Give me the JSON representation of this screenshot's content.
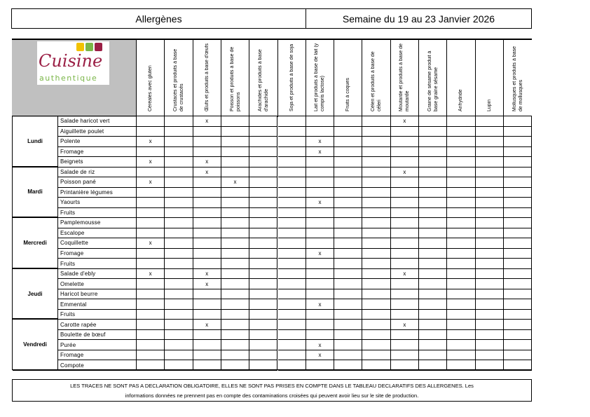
{
  "header": {
    "title": "Allergènes",
    "week": "Semaine du 19 au 23 Janvier 2026"
  },
  "logo": {
    "line1": "Cuisine",
    "line2": "authentique",
    "colors": {
      "red": "#9b1f45",
      "green": "#7ab648",
      "yellow": "#f2c200"
    }
  },
  "columns": [
    "Céréales avec gluten",
    "Crustacés et produits à base de crustacés",
    "Œufs et produits à base d'œufs",
    "Poisson et produits à base de poissons",
    "Arachides et produits à base d'arachide",
    "Soja et produits à base de soja",
    "Lait et produits à base de lait (y compris lactose)",
    "Fruits à coques",
    "Céleri et produits à base de céleri",
    "Moutarde et produits à base de moutarde",
    "Graine de sésame produit à base graine sésame",
    "Anhydride",
    "Lupin",
    "Mollusques et produits à base de mollusques"
  ],
  "days": [
    {
      "name": "Lundi",
      "dishes": [
        {
          "name": "Salade haricot vert",
          "marks": [
            2,
            9
          ]
        },
        {
          "name": "Aiguillette poulet",
          "marks": []
        },
        {
          "name": "Polente",
          "marks": [
            0,
            6
          ]
        },
        {
          "name": "Fromage",
          "marks": [
            6
          ]
        },
        {
          "name": "Beignets",
          "marks": [
            0,
            2
          ]
        }
      ]
    },
    {
      "name": "Mardi",
      "dishes": [
        {
          "name": "Salade de riz",
          "marks": [
            2,
            9
          ]
        },
        {
          "name": "Poisson pané",
          "marks": [
            0,
            3
          ]
        },
        {
          "name": "Printanière légumes",
          "marks": []
        },
        {
          "name": "Yaourts",
          "marks": [
            6
          ]
        },
        {
          "name": "Fruits",
          "marks": []
        }
      ]
    },
    {
      "name": "Mercredi",
      "dishes": [
        {
          "name": "Pamplemousse",
          "marks": []
        },
        {
          "name": "Escalope",
          "marks": []
        },
        {
          "name": "Coquillette",
          "marks": [
            0
          ]
        },
        {
          "name": "Fromage",
          "marks": [
            6
          ]
        },
        {
          "name": "Fruits",
          "marks": []
        }
      ]
    },
    {
      "name": "Jeudi",
      "dishes": [
        {
          "name": "Salade d'ebly",
          "marks": [
            0,
            2,
            9
          ]
        },
        {
          "name": "Omelette",
          "marks": [
            2
          ]
        },
        {
          "name": "Haricot beurre",
          "marks": []
        },
        {
          "name": "Emmental",
          "marks": [
            6
          ]
        },
        {
          "name": "Fruits",
          "marks": []
        }
      ]
    },
    {
      "name": "Vendredi",
      "dishes": [
        {
          "name": "Carotte rapée",
          "marks": [
            2,
            9
          ]
        },
        {
          "name": "Boulette de bœuf",
          "marks": []
        },
        {
          "name": "Purée",
          "marks": [
            6
          ]
        },
        {
          "name": "Fromage",
          "marks": [
            6
          ]
        },
        {
          "name": "Compote",
          "marks": []
        }
      ]
    }
  ],
  "mark_symbol": "x",
  "footer": {
    "line1": "LES TRACES NE SONT PAS A DECLARATION OBLIGATOIRE, ELLES NE SONT PAS PRISES EN COMPTE DANS LE TABLEAU DECLARATIFS DES ALLERGENES. Les",
    "line2": "informations données ne prennent pas en compte des contaminations croisées qui peuvent avoir lieu sur le site de production."
  }
}
